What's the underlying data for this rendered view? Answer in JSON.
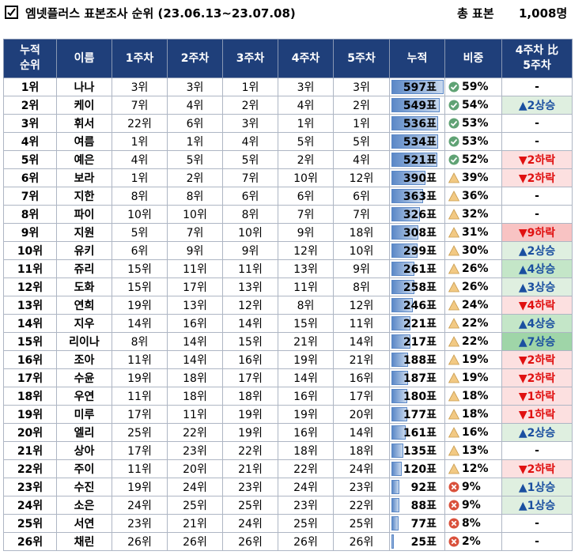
{
  "title": "엠넷플러스 표본조사 순위 (23.06.13~23.07.08)",
  "sample": {
    "label": "총 표본",
    "value": "1,008명"
  },
  "max_votes": 597,
  "headers": [
    "누적\n순위",
    "이름",
    "1주차",
    "2주차",
    "3주차",
    "4주차",
    "5주차",
    "누적",
    "비중",
    "4주차 比\n5주차"
  ],
  "rows": [
    {
      "rank": "1위",
      "name": "나나",
      "w": [
        "3위",
        "3위",
        "1위",
        "3위",
        "3위"
      ],
      "votes": 597,
      "cum": "597표",
      "share": "59%",
      "icon": "check",
      "change": "-",
      "dir": "none"
    },
    {
      "rank": "2위",
      "name": "케이",
      "w": [
        "7위",
        "4위",
        "2위",
        "4위",
        "2위"
      ],
      "votes": 549,
      "cum": "549표",
      "share": "54%",
      "icon": "check",
      "change": "▲2상승",
      "dir": "up"
    },
    {
      "rank": "3위",
      "name": "휘서",
      "w": [
        "22위",
        "6위",
        "3위",
        "1위",
        "1위"
      ],
      "votes": 536,
      "cum": "536표",
      "share": "53%",
      "icon": "check",
      "change": "-",
      "dir": "none"
    },
    {
      "rank": "4위",
      "name": "여름",
      "w": [
        "1위",
        "1위",
        "4위",
        "5위",
        "5위"
      ],
      "votes": 534,
      "cum": "534표",
      "share": "53%",
      "icon": "check",
      "change": "-",
      "dir": "none"
    },
    {
      "rank": "5위",
      "name": "예은",
      "w": [
        "4위",
        "5위",
        "5위",
        "2위",
        "4위"
      ],
      "votes": 521,
      "cum": "521표",
      "share": "52%",
      "icon": "check",
      "change": "▼2하락",
      "dir": "down"
    },
    {
      "rank": "6위",
      "name": "보라",
      "w": [
        "1위",
        "2위",
        "7위",
        "10위",
        "12위"
      ],
      "votes": 390,
      "cum": "390표",
      "share": "39%",
      "icon": "warn",
      "change": "▼2하락",
      "dir": "down"
    },
    {
      "rank": "7위",
      "name": "지한",
      "w": [
        "8위",
        "8위",
        "6위",
        "6위",
        "6위"
      ],
      "votes": 363,
      "cum": "363표",
      "share": "36%",
      "icon": "warn",
      "change": "-",
      "dir": "none"
    },
    {
      "rank": "8위",
      "name": "파이",
      "w": [
        "10위",
        "10위",
        "8위",
        "7위",
        "7위"
      ],
      "votes": 326,
      "cum": "326표",
      "share": "32%",
      "icon": "warn",
      "change": "-",
      "dir": "none"
    },
    {
      "rank": "9위",
      "name": "지원",
      "w": [
        "5위",
        "7위",
        "10위",
        "9위",
        "18위"
      ],
      "votes": 308,
      "cum": "308표",
      "share": "31%",
      "icon": "warn",
      "change": "▼9하락",
      "dir": "down-strong"
    },
    {
      "rank": "10위",
      "name": "유키",
      "w": [
        "6위",
        "9위",
        "9위",
        "12위",
        "10위"
      ],
      "votes": 299,
      "cum": "299표",
      "share": "30%",
      "icon": "warn",
      "change": "▲2상승",
      "dir": "up"
    },
    {
      "rank": "11위",
      "name": "쥬리",
      "w": [
        "15위",
        "11위",
        "11위",
        "13위",
        "9위"
      ],
      "votes": 261,
      "cum": "261표",
      "share": "26%",
      "icon": "warn",
      "change": "▲4상승",
      "dir": "up-mid"
    },
    {
      "rank": "12위",
      "name": "도화",
      "w": [
        "15위",
        "17위",
        "13위",
        "11위",
        "8위"
      ],
      "votes": 258,
      "cum": "258표",
      "share": "26%",
      "icon": "warn",
      "change": "▲3상승",
      "dir": "up"
    },
    {
      "rank": "13위",
      "name": "연희",
      "w": [
        "19위",
        "13위",
        "12위",
        "8위",
        "12위"
      ],
      "votes": 246,
      "cum": "246표",
      "share": "24%",
      "icon": "warn",
      "change": "▼4하락",
      "dir": "down"
    },
    {
      "rank": "14위",
      "name": "지우",
      "w": [
        "14위",
        "16위",
        "14위",
        "15위",
        "11위"
      ],
      "votes": 221,
      "cum": "221표",
      "share": "22%",
      "icon": "warn",
      "change": "▲4상승",
      "dir": "up-mid"
    },
    {
      "rank": "15위",
      "name": "리이나",
      "w": [
        "8위",
        "14위",
        "15위",
        "21위",
        "14위"
      ],
      "votes": 217,
      "cum": "217표",
      "share": "22%",
      "icon": "warn",
      "change": "▲7상승",
      "dir": "up-strong"
    },
    {
      "rank": "16위",
      "name": "조아",
      "w": [
        "11위",
        "14위",
        "16위",
        "19위",
        "21위"
      ],
      "votes": 188,
      "cum": "188표",
      "share": "19%",
      "icon": "warn",
      "change": "▼2하락",
      "dir": "down"
    },
    {
      "rank": "17위",
      "name": "수윤",
      "w": [
        "19위",
        "18위",
        "17위",
        "14위",
        "16위"
      ],
      "votes": 187,
      "cum": "187표",
      "share": "19%",
      "icon": "warn",
      "change": "▼2하락",
      "dir": "down"
    },
    {
      "rank": "18위",
      "name": "우연",
      "w": [
        "11위",
        "18위",
        "18위",
        "16위",
        "17위"
      ],
      "votes": 180,
      "cum": "180표",
      "share": "18%",
      "icon": "warn",
      "change": "▼1하락",
      "dir": "down"
    },
    {
      "rank": "19위",
      "name": "미루",
      "w": [
        "17위",
        "11위",
        "19위",
        "19위",
        "20위"
      ],
      "votes": 177,
      "cum": "177표",
      "share": "18%",
      "icon": "warn",
      "change": "▼1하락",
      "dir": "down"
    },
    {
      "rank": "20위",
      "name": "엘리",
      "w": [
        "25위",
        "22위",
        "19위",
        "16위",
        "14위"
      ],
      "votes": 161,
      "cum": "161표",
      "share": "16%",
      "icon": "warn",
      "change": "▲2상승",
      "dir": "up"
    },
    {
      "rank": "21위",
      "name": "상아",
      "w": [
        "17위",
        "23위",
        "22위",
        "18위",
        "18위"
      ],
      "votes": 135,
      "cum": "135표",
      "share": "13%",
      "icon": "warn",
      "change": "-",
      "dir": "none"
    },
    {
      "rank": "22위",
      "name": "주이",
      "w": [
        "11위",
        "20위",
        "21위",
        "22위",
        "24위"
      ],
      "votes": 120,
      "cum": "120표",
      "share": "12%",
      "icon": "warn",
      "change": "▼2하락",
      "dir": "down"
    },
    {
      "rank": "23위",
      "name": "수진",
      "w": [
        "19위",
        "24위",
        "23위",
        "24위",
        "23위"
      ],
      "votes": 92,
      "cum": "92표",
      "share": "9%",
      "icon": "cross",
      "change": "▲1상승",
      "dir": "up"
    },
    {
      "rank": "24위",
      "name": "소은",
      "w": [
        "24위",
        "25위",
        "25위",
        "23위",
        "22위"
      ],
      "votes": 88,
      "cum": "88표",
      "share": "9%",
      "icon": "cross",
      "change": "▲1상승",
      "dir": "up"
    },
    {
      "rank": "25위",
      "name": "서연",
      "w": [
        "23위",
        "21위",
        "24위",
        "25위",
        "25위"
      ],
      "votes": 77,
      "cum": "77표",
      "share": "8%",
      "icon": "cross",
      "change": "-",
      "dir": "none"
    },
    {
      "rank": "26위",
      "name": "채린",
      "w": [
        "26위",
        "26위",
        "26위",
        "26위",
        "26위"
      ],
      "votes": 25,
      "cum": "25표",
      "share": "2%",
      "icon": "cross",
      "change": "-",
      "dir": "none"
    }
  ]
}
